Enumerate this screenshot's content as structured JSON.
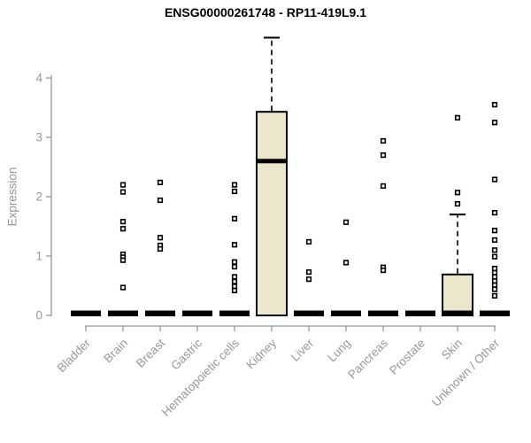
{
  "chart_data": {
    "type": "boxplot",
    "title": "ENSG00000261748 - RP11-419L9.1",
    "ylabel": "Expression",
    "xlabel": "",
    "ylim": [
      0,
      4.7
    ],
    "yticks": [
      0,
      1,
      2,
      3,
      4
    ],
    "grid": false,
    "legend": "none",
    "categories": [
      "Bladder",
      "Brain",
      "Breast",
      "Gastric",
      "Hematopoietic cells",
      "Kidney",
      "Liver",
      "Lung",
      "Pancreas",
      "Prostate",
      "Skin",
      "Unknown / Other"
    ],
    "boxes": [
      {
        "category": "Bladder",
        "min": 0,
        "q1": 0,
        "median": 0,
        "q3": 0,
        "max": 0,
        "outliers": []
      },
      {
        "category": "Brain",
        "min": 0,
        "q1": 0,
        "median": 0,
        "q3": 0,
        "max": 0,
        "outliers": [
          2.2,
          2.08,
          1.58,
          1.46,
          1.03,
          0.98,
          0.93,
          0.47
        ]
      },
      {
        "category": "Breast",
        "min": 0,
        "q1": 0,
        "median": 0,
        "q3": 0,
        "max": 0,
        "outliers": [
          2.24,
          1.94,
          1.31,
          1.18,
          1.12
        ]
      },
      {
        "category": "Gastric",
        "min": 0,
        "q1": 0,
        "median": 0,
        "q3": 0,
        "max": 0,
        "outliers": []
      },
      {
        "category": "Hematopoietic cells",
        "min": 0,
        "q1": 0,
        "median": 0,
        "q3": 0,
        "max": 0,
        "outliers": [
          2.2,
          2.09,
          1.63,
          1.19,
          0.9,
          0.82,
          0.65,
          0.57,
          0.49,
          0.42
        ]
      },
      {
        "category": "Kidney",
        "min": 0,
        "q1": 0,
        "median": 2.6,
        "q3": 3.43,
        "max": 4.68,
        "outliers": []
      },
      {
        "category": "Liver",
        "min": 0,
        "q1": 0,
        "median": 0,
        "q3": 0,
        "max": 0,
        "outliers": [
          1.24,
          0.73,
          0.61
        ]
      },
      {
        "category": "Lung",
        "min": 0,
        "q1": 0,
        "median": 0,
        "q3": 0,
        "max": 0,
        "outliers": [
          1.57,
          0.89
        ]
      },
      {
        "category": "Pancreas",
        "min": 0,
        "q1": 0,
        "median": 0,
        "q3": 0,
        "max": 0,
        "outliers": [
          2.94,
          2.7,
          2.18,
          0.81,
          0.76
        ]
      },
      {
        "category": "Prostate",
        "min": 0,
        "q1": 0,
        "median": 0,
        "q3": 0,
        "max": 0,
        "outliers": []
      },
      {
        "category": "Skin",
        "min": 0,
        "q1": 0,
        "median": 0,
        "q3": 0.69,
        "max": 1.7,
        "outliers": [
          3.33,
          2.07,
          1.88
        ]
      },
      {
        "category": "Unknown / Other",
        "min": 0,
        "q1": 0,
        "median": 0,
        "q3": 0,
        "max": 0,
        "outliers": [
          3.55,
          3.25,
          2.29,
          1.73,
          1.43,
          1.27,
          1.1,
          0.99,
          0.79,
          0.72,
          0.65,
          0.58,
          0.51,
          0.44,
          0.33
        ]
      }
    ],
    "colors": {
      "box_fill": "#ECE7CB",
      "box_border": "#000000",
      "median": "#000000",
      "outlier": "#000000",
      "axis": "#989898",
      "tick_label": "#989898",
      "title": "#000000",
      "background": "#ffffff"
    }
  }
}
